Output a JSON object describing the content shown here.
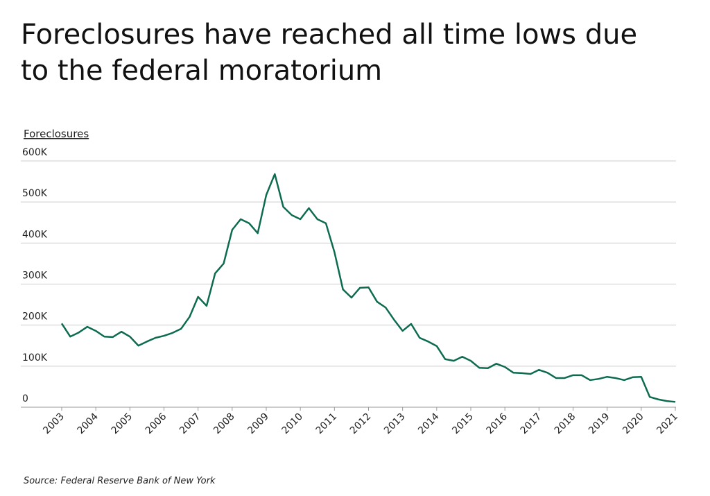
{
  "chart_data": {
    "type": "line",
    "title": "Foreclosures have reached all time lows due to the federal moratorium",
    "ylabel": "Foreclosures",
    "source": "Source:  Federal Reserve Bank of New York",
    "x": [
      2003,
      2003.25,
      2003.5,
      2003.75,
      2004,
      2004.25,
      2004.5,
      2004.75,
      2005,
      2005.25,
      2005.5,
      2005.75,
      2006,
      2006.25,
      2006.5,
      2006.75,
      2007,
      2007.25,
      2007.5,
      2007.75,
      2008,
      2008.25,
      2008.5,
      2008.75,
      2009,
      2009.25,
      2009.5,
      2009.75,
      2010,
      2010.25,
      2010.5,
      2010.75,
      2011,
      2011.25,
      2011.5,
      2011.75,
      2012,
      2012.25,
      2012.5,
      2012.75,
      2013,
      2013.25,
      2013.5,
      2013.75,
      2014,
      2014.25,
      2014.5,
      2014.75,
      2015,
      2015.25,
      2015.5,
      2015.75,
      2016,
      2016.25,
      2016.5,
      2016.75,
      2017,
      2017.25,
      2017.5,
      2017.75,
      2018,
      2018.25,
      2018.5,
      2018.75,
      2019,
      2019.25,
      2019.5,
      2019.75,
      2020,
      2020.25,
      2020.5,
      2020.75,
      2021
    ],
    "series": [
      {
        "name": "Foreclosures",
        "color": "#0d6b4f",
        "values": [
          204000,
          172000,
          182000,
          196000,
          186000,
          172000,
          171000,
          184000,
          172000,
          150000,
          160000,
          169000,
          174000,
          181000,
          191000,
          220000,
          269000,
          247000,
          326000,
          350000,
          432000,
          458000,
          448000,
          424000,
          517000,
          568000,
          488000,
          468000,
          458000,
          485000,
          458000,
          448000,
          378000,
          287000,
          267000,
          291000,
          292000,
          257000,
          243000,
          213000,
          186000,
          203000,
          169000,
          160000,
          149000,
          117000,
          113000,
          123000,
          113000,
          96000,
          95000,
          106000,
          98000,
          84000,
          83000,
          81000,
          91000,
          84000,
          71000,
          71000,
          78000,
          78000,
          66000,
          69000,
          74000,
          71000,
          66000,
          73000,
          74000,
          25000,
          19000,
          15000,
          13000
        ]
      }
    ],
    "xlim": [
      2003,
      2021
    ],
    "xticks": [
      2003,
      2004,
      2005,
      2006,
      2007,
      2008,
      2009,
      2010,
      2011,
      2012,
      2013,
      2014,
      2015,
      2016,
      2017,
      2018,
      2019,
      2020,
      2021
    ],
    "ylim": [
      0,
      600000
    ],
    "yticks": [
      0,
      {
        "value": 100000,
        "label": "100K"
      },
      {
        "value": 200000,
        "label": "200K"
      },
      {
        "value": 300000,
        "label": "300K"
      },
      {
        "value": 400000,
        "label": "400K"
      },
      {
        "value": 500000,
        "label": "500K"
      },
      {
        "value": 600000,
        "label": "600K"
      }
    ],
    "grid": true
  }
}
